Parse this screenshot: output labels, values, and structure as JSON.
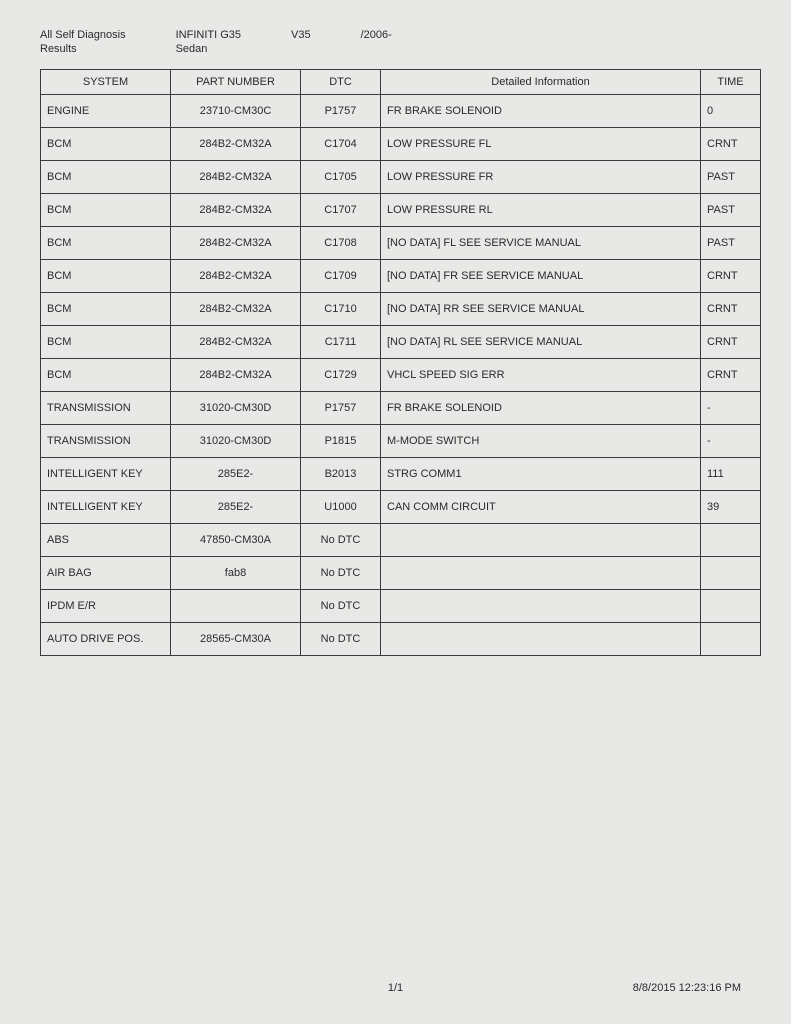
{
  "header": {
    "title_line1": "All Self Diagnosis",
    "title_line2": "Results",
    "vehicle_make": "INFINITI G35",
    "vehicle_body": "Sedan",
    "vehicle_code": "V35",
    "vehicle_year": "/2006-"
  },
  "table": {
    "columns": [
      "SYSTEM",
      "PART NUMBER",
      "DTC",
      "Detailed Information",
      "TIME"
    ],
    "rows": [
      [
        "ENGINE",
        "23710-CM30C",
        "P1757",
        "FR BRAKE SOLENOID",
        "0"
      ],
      [
        "BCM",
        "284B2-CM32A",
        "C1704",
        "LOW PRESSURE FL",
        "CRNT"
      ],
      [
        "BCM",
        "284B2-CM32A",
        "C1705",
        "LOW PRESSURE FR",
        "PAST"
      ],
      [
        "BCM",
        "284B2-CM32A",
        "C1707",
        "LOW PRESSURE RL",
        "PAST"
      ],
      [
        "BCM",
        "284B2-CM32A",
        "C1708",
        "[NO DATA] FL SEE SERVICE MANUAL",
        "PAST"
      ],
      [
        "BCM",
        "284B2-CM32A",
        "C1709",
        "[NO DATA] FR SEE SERVICE MANUAL",
        "CRNT"
      ],
      [
        "BCM",
        "284B2-CM32A",
        "C1710",
        "[NO DATA] RR SEE SERVICE MANUAL",
        "CRNT"
      ],
      [
        "BCM",
        "284B2-CM32A",
        "C1711",
        "[NO DATA] RL SEE SERVICE MANUAL",
        "CRNT"
      ],
      [
        "BCM",
        "284B2-CM32A",
        "C1729",
        "VHCL SPEED SIG ERR",
        "CRNT"
      ],
      [
        "TRANSMISSION",
        "31020-CM30D",
        "P1757",
        "FR BRAKE SOLENOID",
        "-"
      ],
      [
        "TRANSMISSION",
        "31020-CM30D",
        "P1815",
        "M-MODE SWITCH",
        "-"
      ],
      [
        "INTELLIGENT KEY",
        "285E2-",
        "B2013",
        "STRG COMM1",
        "111"
      ],
      [
        "INTELLIGENT KEY",
        "285E2-",
        "U1000",
        "CAN COMM CIRCUIT",
        "39"
      ],
      [
        "ABS",
        "47850-CM30A",
        "No DTC",
        "",
        ""
      ],
      [
        "AIR BAG",
        "fab8",
        "No DTC",
        "",
        ""
      ],
      [
        "IPDM E/R",
        "",
        "No DTC",
        "",
        ""
      ],
      [
        "AUTO DRIVE POS.",
        "28565-CM30A",
        "No DTC",
        "",
        ""
      ]
    ]
  },
  "footer": {
    "page": "1/1",
    "timestamp": "8/8/2015 12:23:16 PM"
  }
}
